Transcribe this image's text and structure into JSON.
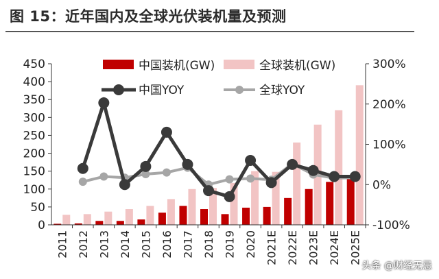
{
  "title": "图 15：近年国内及全球光伏装机量及预测",
  "watermark": "头条 @财经无忌",
  "colors": {
    "china_bar": "#c00000",
    "global_bar": "#f2c4c4",
    "china_line": "#3a3a3a",
    "global_line": "#a6a6a6"
  },
  "chart_data": {
    "type": "bar",
    "categories": [
      "2011",
      "2012",
      "2013",
      "2014",
      "2015",
      "2016",
      "2017",
      "2018",
      "2019",
      "2020",
      "2021E",
      "2022E",
      "2023E",
      "2024E",
      "2025E"
    ],
    "series": [
      {
        "name": "中国装机(GW)",
        "type": "bar",
        "axis": "left",
        "values": [
          3,
          4,
          11,
          11,
          15,
          34,
          53,
          44,
          30,
          48,
          50,
          75,
          100,
          120,
          130
        ]
      },
      {
        "name": "全球装机(GW)",
        "type": "bar",
        "axis": "left",
        "values": [
          28,
          30,
          37,
          44,
          53,
          72,
          100,
          103,
          117,
          150,
          148,
          230,
          280,
          320,
          390
        ]
      },
      {
        "name": "中国YOY",
        "type": "line",
        "axis": "right",
        "values": [
          null,
          40,
          203,
          0,
          45,
          130,
          50,
          -15,
          -30,
          60,
          5,
          50,
          35,
          20,
          20
        ]
      },
      {
        "name": "全球YOY",
        "type": "line",
        "axis": "right",
        "values": [
          null,
          7,
          20,
          17,
          26,
          30,
          42,
          0,
          13,
          15,
          12,
          52,
          25,
          16,
          17
        ]
      }
    ],
    "ylim_left": [
      0,
      450
    ],
    "yticks_left": [
      0,
      50,
      100,
      150,
      200,
      250,
      300,
      350,
      400,
      450
    ],
    "ylim_right": [
      -100,
      300
    ],
    "yticks_right": [
      "-100%",
      "0%",
      "100%",
      "200%",
      "300%"
    ],
    "legend_position": "top"
  }
}
